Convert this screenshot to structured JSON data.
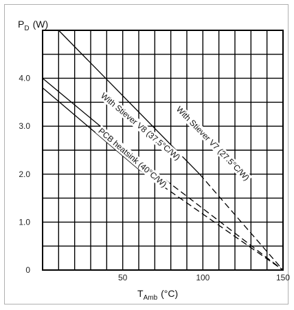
{
  "chart_data": {
    "type": "line",
    "title": "",
    "ylabel_main": "P",
    "ylabel_sub": "D",
    "ylabel_unit": "(W)",
    "xlabel_main": "T",
    "xlabel_sub": "Amb",
    "xlabel_unit": "(°C)",
    "xlim": [
      0,
      150
    ],
    "ylim": [
      0,
      5
    ],
    "grid": true,
    "x_ticks": [
      {
        "value": 50,
        "label": "50"
      },
      {
        "value": 100,
        "label": "100"
      },
      {
        "value": 150,
        "label": "150"
      }
    ],
    "y_ticks": [
      {
        "value": 0,
        "label": "0"
      },
      {
        "value": 1,
        "label": "1.0"
      },
      {
        "value": 2,
        "label": "2.0"
      },
      {
        "value": 3,
        "label": "3.0"
      },
      {
        "value": 4,
        "label": "4.0"
      }
    ],
    "series": [
      {
        "name": "With Stiever V7 (27.5°C/W)",
        "solid": {
          "x": [
            10,
            98
          ],
          "y": [
            5.0,
            2.0
          ]
        },
        "dashed": {
          "x": [
            98,
            150
          ],
          "y": [
            2.0,
            0
          ]
        },
        "label_pos": {
          "x": 105,
          "y": 2.6
        }
      },
      {
        "name": "With Stiever V8 (37.5°C/W)",
        "solid": {
          "x": [
            0,
            72
          ],
          "y": [
            4.0,
            2.0
          ]
        },
        "dashed": {
          "x": [
            72,
            150
          ],
          "y": [
            2.0,
            0
          ]
        },
        "label_pos": {
          "x": 60,
          "y": 2.95
        }
      },
      {
        "name": "PCB heatsink (40°C/W)",
        "solid": {
          "x": [
            0,
            60
          ],
          "y": [
            3.8,
            2.1
          ]
        },
        "dashed": {
          "x": [
            60,
            150
          ],
          "y": [
            2.1,
            0
          ]
        },
        "label_pos": {
          "x": 55,
          "y": 2.3
        }
      }
    ]
  }
}
